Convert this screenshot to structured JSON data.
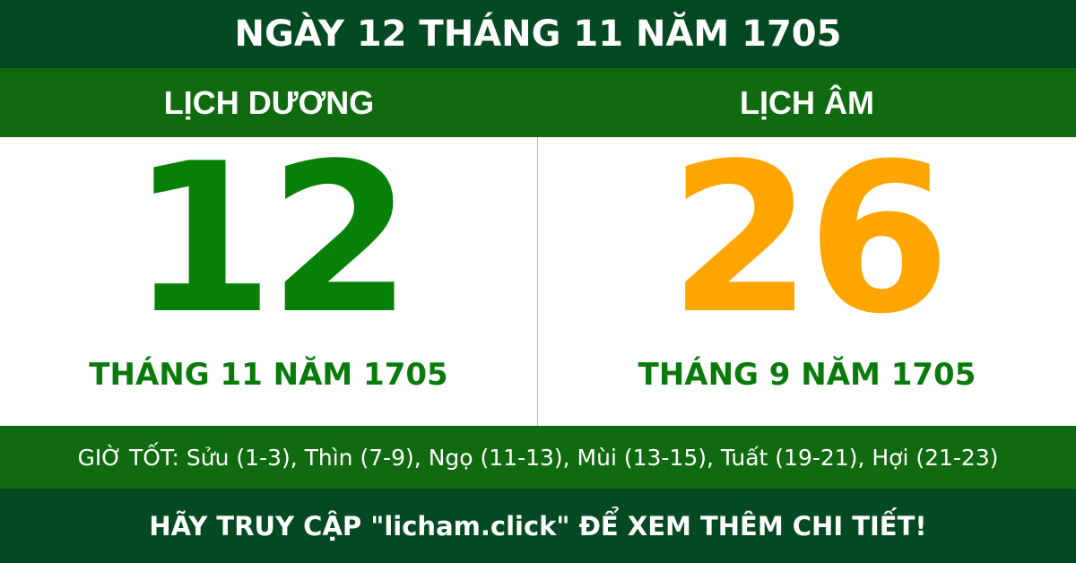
{
  "header": {
    "title": "NGÀY 12 THÁNG 11 NĂM 1705"
  },
  "solar": {
    "label": "LỊCH DƯƠNG",
    "day": "12",
    "month_year": "THÁNG 11 NĂM 1705",
    "color": "#078007"
  },
  "lunar": {
    "label": "LỊCH ÂM",
    "day": "26",
    "month_year": "THÁNG 9 NĂM 1705",
    "color": "#ffa500"
  },
  "good_hours": "GIỜ TỐT: Sửu (1-3), Thìn (7-9), Ngọ (11-13), Mùi (13-15), Tuất (19-21), Hợi (21-23)",
  "footer": "HÃY TRUY CẬP \"licham.click\" ĐỂ XEM THÊM CHI TIẾT!"
}
